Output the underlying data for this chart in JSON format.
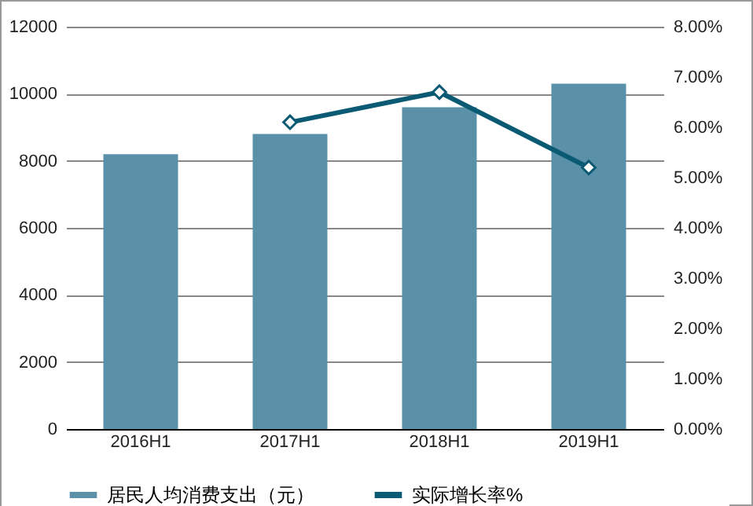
{
  "chart_data": {
    "type": "bar",
    "categories": [
      "2016H1",
      "2017H1",
      "2018H1",
      "2019H1"
    ],
    "series": [
      {
        "name": "居民人均消费支出（元）",
        "color": "#5b91a8",
        "values": [
          8200,
          8800,
          9600,
          10300
        ]
      },
      {
        "name": "实际增长率%",
        "type": "line",
        "axis": "y2",
        "color": "#0b5a73",
        "values": [
          null,
          6.1,
          6.7,
          5.2
        ]
      }
    ],
    "ylim": [
      0,
      12000
    ],
    "yticks": [
      0,
      2000,
      4000,
      6000,
      8000,
      10000,
      12000
    ],
    "y2lim": [
      0,
      8
    ],
    "y2ticks": [
      {
        "value": 0,
        "label": "0.00%"
      },
      {
        "value": 1,
        "label": "1.00%"
      },
      {
        "value": 2,
        "label": "2.00%"
      },
      {
        "value": 3,
        "label": "3.00%"
      },
      {
        "value": 4,
        "label": "4.00%"
      },
      {
        "value": 5,
        "label": "5.00%"
      },
      {
        "value": 6,
        "label": "6.00%"
      },
      {
        "value": 7,
        "label": "7.00%"
      },
      {
        "value": 8,
        "label": "8.00%"
      }
    ],
    "grid": "y",
    "legend": "bottom",
    "marker": "diamond",
    "line_style": "solid"
  }
}
